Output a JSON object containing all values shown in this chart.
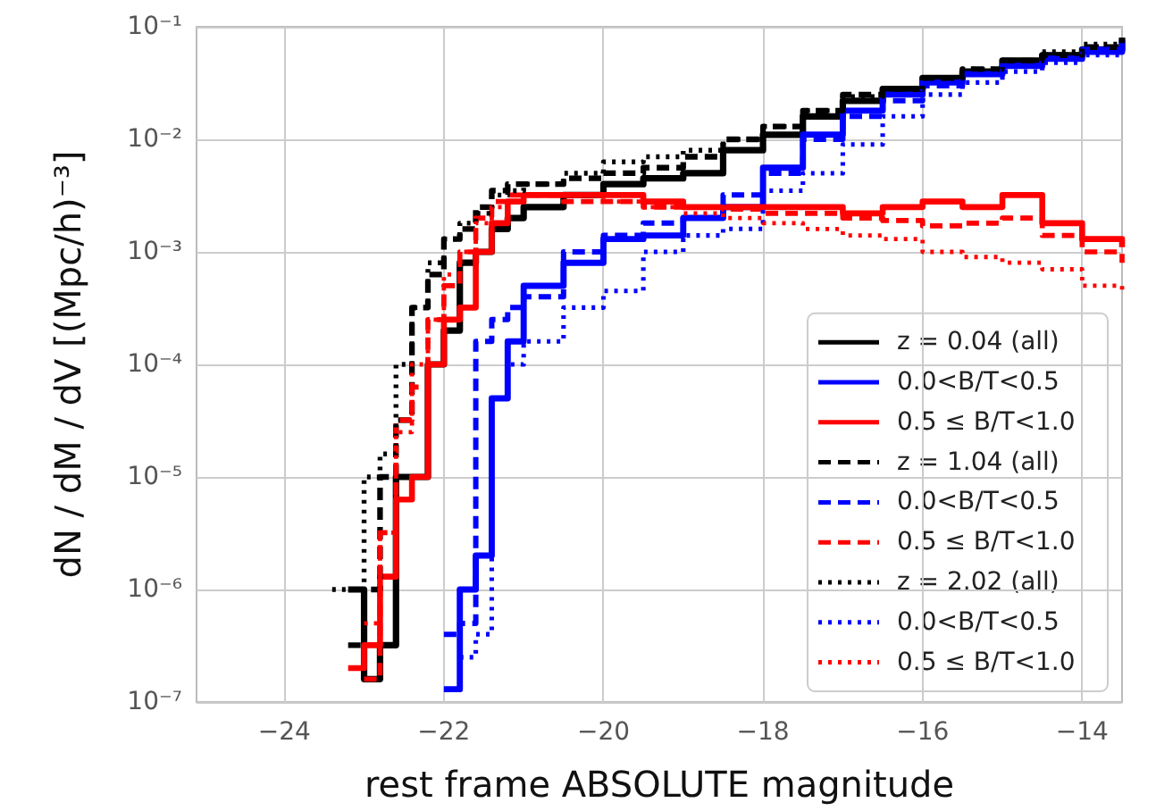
{
  "chart_data": {
    "type": "step",
    "xlabel": "rest frame ABSOLUTE magnitude",
    "ylabel": "dN / dM / dV [(Mpc/h)⁻³]",
    "x": [
      -23.4,
      -23.2,
      -23.0,
      -22.8,
      -22.6,
      -22.4,
      -22.2,
      -22.0,
      -21.8,
      -21.6,
      -21.4,
      -21.2,
      -21.0,
      -20.5,
      -20.0,
      -19.5,
      -19.0,
      -18.5,
      -18.0,
      -17.5,
      -17.0,
      -16.5,
      -16.0,
      -15.5,
      -15.0,
      -14.5,
      -14.0,
      -13.5
    ],
    "series": [
      {
        "name": "z = 0.04 (all)",
        "color": "#000000",
        "line_style": "solid",
        "values": [
          null,
          1e-06,
          1.6e-07,
          3.2e-07,
          1e-05,
          1e-05,
          0.0001,
          0.0002,
          0.0008,
          0.001,
          0.0016,
          0.002,
          0.0025,
          0.0032,
          0.004,
          0.0045,
          0.005,
          0.008,
          0.011,
          0.016,
          0.022,
          0.028,
          0.035,
          0.04,
          0.05,
          0.056,
          0.063,
          0.08
        ]
      },
      {
        "name": "0.0<B/T<0.5",
        "color": "#0000ff",
        "line_style": "solid",
        "values": [
          null,
          null,
          null,
          null,
          null,
          null,
          null,
          1.3e-07,
          1e-06,
          2e-06,
          5e-05,
          0.00016,
          0.0005,
          0.0008,
          0.0013,
          0.0014,
          0.002,
          0.0025,
          0.0056,
          0.011,
          0.018,
          0.025,
          0.032,
          0.038,
          0.045,
          0.052,
          0.06,
          0.076
        ]
      },
      {
        "name": "0.5 ≤ B/T<1.0",
        "color": "#ff0000",
        "line_style": "solid",
        "values": [
          null,
          2e-07,
          3.2e-07,
          1.3e-06,
          6.3e-06,
          1e-05,
          0.0001,
          0.00025,
          0.00032,
          0.001,
          0.0018,
          0.0028,
          0.0032,
          0.0032,
          0.0032,
          0.0028,
          0.0025,
          0.0025,
          0.0025,
          0.0025,
          0.0022,
          0.0025,
          0.0028,
          0.0025,
          0.0032,
          0.0018,
          0.0013,
          0.0011
        ]
      },
      {
        "name": "z = 1.04 (all)",
        "color": "#000000",
        "line_style": "dashed",
        "values": [
          null,
          3.2e-07,
          1e-06,
          1e-05,
          3.2e-05,
          0.00032,
          0.00063,
          0.0013,
          0.0016,
          0.0025,
          0.0035,
          0.004,
          0.004,
          0.0045,
          0.005,
          0.0056,
          0.007,
          0.01,
          0.013,
          0.018,
          0.025,
          0.028,
          0.035,
          0.042,
          0.05,
          0.056,
          0.066,
          0.08
        ]
      },
      {
        "name": "0.0<B/T<0.5",
        "color": "#0000ff",
        "line_style": "dashed",
        "values": [
          null,
          null,
          null,
          null,
          null,
          null,
          null,
          4e-07,
          5e-07,
          0.00016,
          0.00025,
          0.00032,
          0.0004,
          0.001,
          0.0014,
          0.0018,
          0.002,
          0.0032,
          0.005,
          0.01,
          0.016,
          0.022,
          0.03,
          0.038,
          0.045,
          0.052,
          0.063,
          0.076
        ]
      },
      {
        "name": "0.5 ≤ B/T<1.0",
        "color": "#ff0000",
        "line_style": "dashed",
        "values": [
          null,
          null,
          1.6e-07,
          3.2e-06,
          3.2e-05,
          6.3e-05,
          0.00025,
          0.0005,
          0.001,
          0.002,
          0.0028,
          0.0032,
          0.0032,
          0.0028,
          0.0028,
          0.0025,
          0.0025,
          0.0024,
          0.0022,
          0.0022,
          0.002,
          0.0019,
          0.0017,
          0.0018,
          0.002,
          0.0014,
          0.001,
          0.0008
        ]
      },
      {
        "name": "z = 2.02 (all)",
        "color": "#000000",
        "line_style": "dotted",
        "values": [
          1e-06,
          1e-06,
          1e-05,
          1.6e-05,
          0.0001,
          0.00032,
          0.0008,
          0.0013,
          0.0018,
          0.0022,
          0.0032,
          0.0035,
          0.004,
          0.005,
          0.0063,
          0.007,
          0.008,
          0.01,
          0.013,
          0.018,
          0.024,
          0.028,
          0.035,
          0.042,
          0.05,
          0.06,
          0.07,
          0.083
        ]
      },
      {
        "name": "0.0<B/T<0.5",
        "color": "#0000ff",
        "line_style": "dotted",
        "values": [
          null,
          null,
          null,
          null,
          null,
          null,
          null,
          null,
          2.5e-07,
          4e-07,
          5e-05,
          0.0001,
          0.00016,
          0.00032,
          0.00045,
          0.001,
          0.0014,
          0.0016,
          0.0035,
          0.005,
          0.009,
          0.016,
          0.025,
          0.032,
          0.04,
          0.048,
          0.056,
          0.07
        ]
      },
      {
        "name": "0.5 ≤ B/T<1.0",
        "color": "#ff0000",
        "line_style": "dotted",
        "values": [
          null,
          null,
          5e-07,
          3.2e-06,
          2.5e-05,
          0.0001,
          0.00025,
          0.00063,
          0.001,
          0.0018,
          0.0025,
          0.0028,
          0.0032,
          0.0032,
          0.0028,
          0.0025,
          0.0022,
          0.002,
          0.0018,
          0.0016,
          0.0014,
          0.0013,
          0.001,
          0.0009,
          0.0008,
          0.0007,
          0.0005,
          0.00045
        ]
      }
    ],
    "xlim": [
      -25.1,
      -13.5
    ],
    "xticks": [
      {
        "value": -24,
        "label": "−24"
      },
      {
        "value": -22,
        "label": "−22"
      },
      {
        "value": -20,
        "label": "−20"
      },
      {
        "value": -18,
        "label": "−18"
      },
      {
        "value": -16,
        "label": "−16"
      },
      {
        "value": -14,
        "label": "−14"
      }
    ],
    "ylim": [
      1e-07,
      0.1
    ],
    "log": "y",
    "yticks": [
      {
        "value": 1e-07,
        "label": "10⁻⁷"
      },
      {
        "value": 1e-06,
        "label": "10⁻⁶"
      },
      {
        "value": 1e-05,
        "label": "10⁻⁵"
      },
      {
        "value": 0.0001,
        "label": "10⁻⁴"
      },
      {
        "value": 0.001,
        "label": "10⁻³"
      },
      {
        "value": 0.01,
        "label": "10⁻²"
      },
      {
        "value": 0.1,
        "label": "10⁻¹"
      }
    ],
    "grid": true,
    "legend": "bottom right",
    "marker": "none"
  }
}
